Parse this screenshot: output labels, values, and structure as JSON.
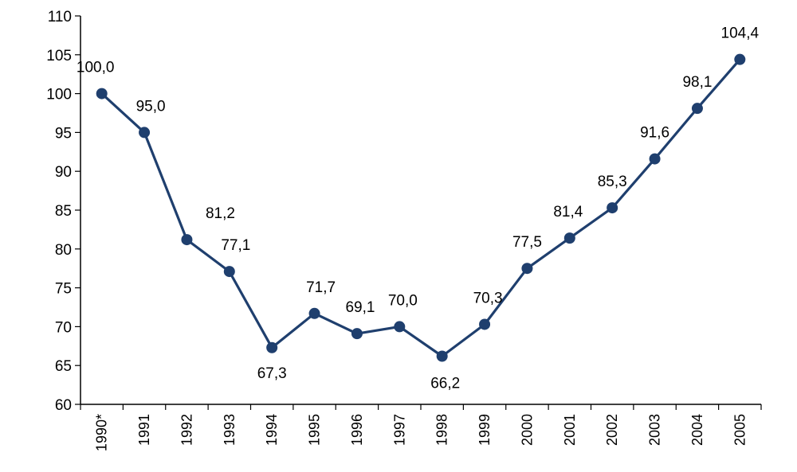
{
  "chart_data": {
    "type": "line",
    "categories": [
      "1990*",
      "1991",
      "1992",
      "1993",
      "1994",
      "1995",
      "1996",
      "1997",
      "1998",
      "1999",
      "2000",
      "2001",
      "2002",
      "2003",
      "2004",
      "2005"
    ],
    "values": [
      100.0,
      95.0,
      81.2,
      77.1,
      67.3,
      71.7,
      69.1,
      70.0,
      66.2,
      70.3,
      77.5,
      81.4,
      85.3,
      91.6,
      98.1,
      104.4
    ],
    "data_labels": [
      "100,0",
      "95,0",
      "81,2",
      "77,1",
      "67,3",
      "71,7",
      "69,1",
      "70,0",
      "66,2",
      "70,3",
      "77,5",
      "81,4",
      "85,3",
      "91,6",
      "98,1",
      "104,4"
    ],
    "ylim": [
      60,
      110
    ],
    "yticks": [
      60,
      65,
      70,
      75,
      80,
      85,
      90,
      95,
      100,
      105,
      110
    ],
    "ytick_labels": [
      "60",
      "65",
      "70",
      "75",
      "80",
      "85",
      "90",
      "95",
      "100",
      "105",
      "110"
    ],
    "grid": false,
    "colors": {
      "series": "#1f3f6e",
      "axis": "#000000",
      "text": "#000000"
    }
  }
}
